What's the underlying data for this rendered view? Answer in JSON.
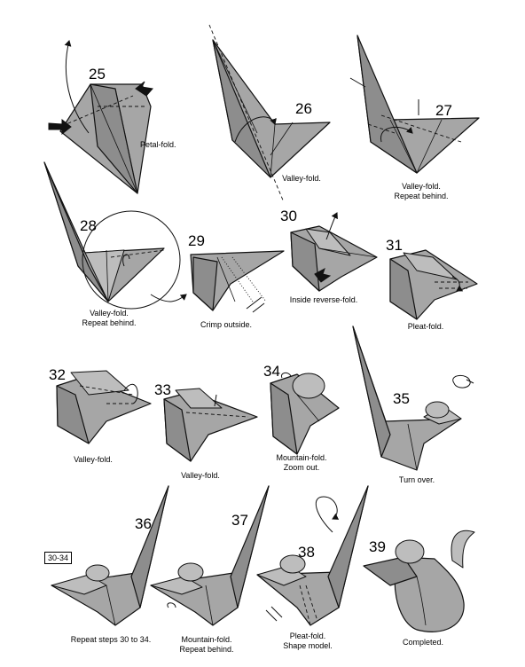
{
  "steps": [
    {
      "num": "25",
      "caption": [
        "Petal-fold."
      ]
    },
    {
      "num": "26",
      "caption": [
        "Valley-fold."
      ]
    },
    {
      "num": "27",
      "caption": [
        "Valley-fold.",
        "Repeat behind."
      ]
    },
    {
      "num": "28",
      "caption": [
        "Valley-fold.",
        "Repeat behind."
      ]
    },
    {
      "num": "29",
      "caption": [
        "Crimp outside."
      ]
    },
    {
      "num": "30",
      "caption": [
        "Inside reverse-fold."
      ]
    },
    {
      "num": "31",
      "caption": [
        "Pleat-fold."
      ]
    },
    {
      "num": "32",
      "caption": [
        "Valley-fold."
      ]
    },
    {
      "num": "33",
      "caption": [
        "Valley-fold."
      ]
    },
    {
      "num": "34",
      "caption": [
        "Mountain-fold.",
        "Zoom out."
      ]
    },
    {
      "num": "35",
      "caption": [
        "Turn over."
      ]
    },
    {
      "num": "36",
      "caption": [
        "Repeat steps 30 to 34."
      ]
    },
    {
      "num": "37",
      "caption": [
        "Mountain-fold.",
        "Repeat behind."
      ]
    },
    {
      "num": "38",
      "caption": [
        "Pleat-fold.",
        "Shape model."
      ]
    },
    {
      "num": "39",
      "caption": [
        "Completed."
      ]
    }
  ],
  "repeat_box": "30-34"
}
